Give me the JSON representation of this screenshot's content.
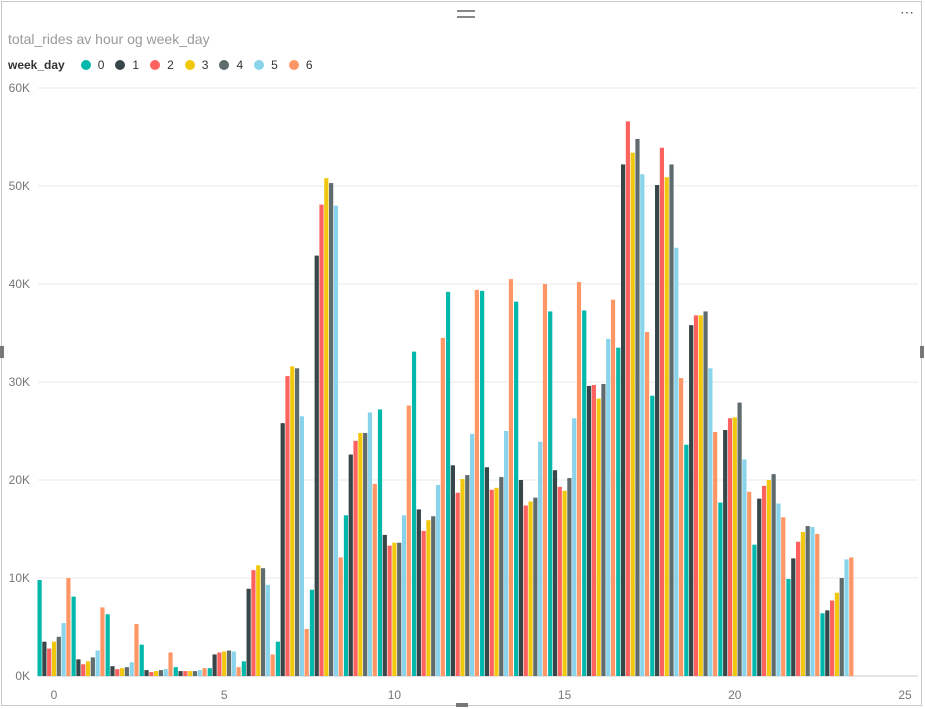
{
  "visual": {
    "title": "total_rides av hour og week_day",
    "more_icon": "ellipsis-icon",
    "grip_icon": "drag-grip-icon"
  },
  "legend": {
    "title": "week_day",
    "items": [
      {
        "label": "0",
        "color": "#01B8AA"
      },
      {
        "label": "1",
        "color": "#374649"
      },
      {
        "label": "2",
        "color": "#FD625E"
      },
      {
        "label": "3",
        "color": "#F2C80F"
      },
      {
        "label": "4",
        "color": "#5F6B6D"
      },
      {
        "label": "5",
        "color": "#8AD4EB"
      },
      {
        "label": "6",
        "color": "#FE9666"
      }
    ]
  },
  "chart_data": {
    "type": "bar",
    "title": "total_rides av hour og week_day",
    "xlabel": "",
    "ylabel": "",
    "x": [
      0,
      1,
      2,
      3,
      4,
      5,
      6,
      7,
      8,
      9,
      10,
      11,
      12,
      13,
      14,
      15,
      16,
      17,
      18,
      19,
      20,
      21,
      22,
      23
    ],
    "xlim": [
      -0.5,
      25
    ],
    "xticks": [
      "0",
      "5",
      "10",
      "15",
      "20",
      "25"
    ],
    "ylim": [
      0,
      60000
    ],
    "yticks": [
      "0K",
      "10K",
      "20K",
      "30K",
      "40K",
      "50K",
      "60K"
    ],
    "grid": true,
    "legend_position": "top-left",
    "series": [
      {
        "name": "0",
        "color": "#01B8AA",
        "values": [
          9800,
          8100,
          6300,
          3200,
          900,
          800,
          1500,
          3500,
          8800,
          16400,
          27200,
          33100,
          39200,
          39300,
          38200,
          37200,
          37300,
          33500,
          28600,
          23600,
          17700,
          13400,
          9900,
          6400
        ]
      },
      {
        "name": "1",
        "color": "#374649",
        "values": [
          3500,
          1700,
          1000,
          600,
          500,
          2200,
          8900,
          25800,
          42900,
          22600,
          14400,
          17000,
          21500,
          21300,
          20000,
          21000,
          29600,
          52200,
          50100,
          35800,
          25100,
          18100,
          12000,
          6700
        ]
      },
      {
        "name": "2",
        "color": "#FD625E",
        "values": [
          2800,
          1200,
          700,
          400,
          500,
          2400,
          10800,
          30600,
          48100,
          24000,
          13300,
          14800,
          18700,
          19000,
          17400,
          19300,
          29700,
          56600,
          53900,
          36800,
          26300,
          19400,
          13700,
          7700
        ]
      },
      {
        "name": "3",
        "color": "#F2C80F",
        "values": [
          3500,
          1500,
          800,
          500,
          500,
          2500,
          11300,
          31600,
          50800,
          24800,
          13600,
          15900,
          20100,
          19200,
          17800,
          18900,
          28300,
          53400,
          50900,
          36800,
          26400,
          20000,
          14700,
          8500
        ]
      },
      {
        "name": "4",
        "color": "#5F6B6D",
        "values": [
          4000,
          1900,
          900,
          600,
          500,
          2600,
          11000,
          31400,
          50300,
          24800,
          13600,
          16300,
          20500,
          20300,
          18200,
          20200,
          29800,
          54800,
          52200,
          37200,
          27900,
          20600,
          15300,
          10000
        ]
      },
      {
        "name": "5",
        "color": "#8AD4EB",
        "values": [
          5400,
          2600,
          1400,
          700,
          600,
          2500,
          9300,
          26500,
          48000,
          26900,
          16400,
          19500,
          24700,
          25000,
          23900,
          26300,
          34400,
          51200,
          43700,
          31400,
          22100,
          17600,
          15200,
          11900
        ]
      },
      {
        "name": "6",
        "color": "#FE9666",
        "values": [
          10000,
          7000,
          5300,
          2400,
          800,
          900,
          2200,
          4800,
          12100,
          19600,
          27600,
          34500,
          39400,
          40500,
          40000,
          40200,
          38400,
          35100,
          30400,
          24900,
          18800,
          16200,
          14500,
          12100
        ]
      }
    ]
  }
}
